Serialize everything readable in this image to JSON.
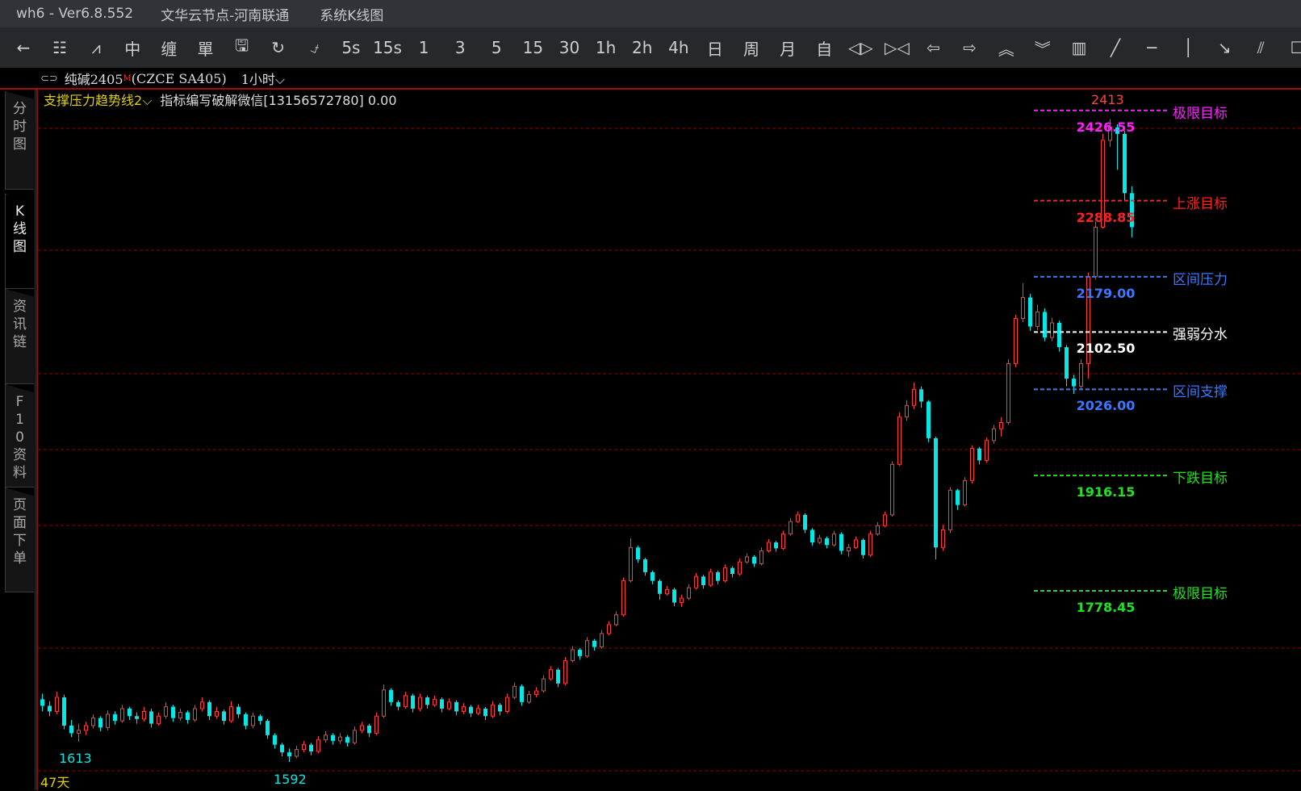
{
  "window": {
    "app": "wh6  -  Ver6.8.552",
    "server": "文华云节点-河南联通",
    "view": "系统K线图"
  },
  "toolbar": [
    {
      "icon": "back-arrow-icon",
      "glyph": "←"
    },
    {
      "icon": "list-icon",
      "glyph": "☷"
    },
    {
      "icon": "line-chart-icon",
      "glyph": "⩘"
    },
    {
      "icon": "candlestick-icon",
      "glyph": "中"
    },
    {
      "icon": "chan-icon",
      "glyph": "缠"
    },
    {
      "icon": "order-icon",
      "glyph": "單"
    },
    {
      "icon": "save-icon",
      "glyph": "🖫"
    },
    {
      "icon": "refresh-icon",
      "glyph": "↻"
    },
    {
      "icon": "switch-icon",
      "glyph": "⍻"
    },
    {
      "label": "5s"
    },
    {
      "label": "15s"
    },
    {
      "label": "1"
    },
    {
      "label": "3"
    },
    {
      "label": "5"
    },
    {
      "label": "15"
    },
    {
      "label": "30"
    },
    {
      "label": "1h"
    },
    {
      "label": "2h"
    },
    {
      "label": "4h"
    },
    {
      "label": "日"
    },
    {
      "label": "周"
    },
    {
      "label": "月"
    },
    {
      "label": "自"
    },
    {
      "icon": "expand-icon",
      "glyph": "◁▷"
    },
    {
      "icon": "shrink-icon",
      "glyph": "▷◁"
    },
    {
      "icon": "left-icon",
      "glyph": "⇦"
    },
    {
      "icon": "right-icon",
      "glyph": "⇨"
    },
    {
      "icon": "up-double-icon",
      "glyph": "︽"
    },
    {
      "icon": "down-double-icon",
      "glyph": "︾"
    },
    {
      "icon": "layout-icon",
      "glyph": "▥"
    },
    {
      "icon": "trendline-icon",
      "glyph": "╱"
    },
    {
      "icon": "hline-icon",
      "glyph": "─"
    },
    {
      "icon": "vline-icon",
      "glyph": "│"
    },
    {
      "icon": "arrow-line-icon",
      "glyph": "↘"
    },
    {
      "icon": "parallel-line-icon",
      "glyph": "⫽"
    },
    {
      "icon": "rect-icon",
      "glyph": "☐"
    }
  ],
  "instrument": {
    "link_icon": "link-icon",
    "link_glyph": "⊂⊃",
    "name": "纯碱2405",
    "mark": "M",
    "code": "(CZCE SA405)",
    "period": "1小时",
    "chevron": "⌵"
  },
  "indicator": {
    "name": "支撑压力趋势线2",
    "chevron": "⌵",
    "text": "指标编写破解微信[13156572780] 0.00"
  },
  "sidebar": [
    {
      "label": "分时图",
      "active": false
    },
    {
      "label": "K线图",
      "active": true
    },
    {
      "label": "资讯链",
      "active": false
    },
    {
      "label": "F10资料",
      "active": false
    },
    {
      "label": "页面下单",
      "active": false
    }
  ],
  "colors": {
    "up": "#ff3b3b",
    "down": "#00e8e8",
    "doji": "#ffffff",
    "grid": "#8b0000"
  },
  "chart_data": {
    "type": "candlestick",
    "scale": "log",
    "levels": [
      {
        "name": "极限目标",
        "value": "2426.55",
        "price": 2426.55,
        "color": "#ff20ff"
      },
      {
        "name": "上涨目标",
        "value": "2288.85",
        "price": 2288.85,
        "color": "#ff2020"
      },
      {
        "name": "区间压力",
        "value": "2179.00",
        "price": 2179.0,
        "color": "#3a78ff"
      },
      {
        "name": "强弱分水",
        "value": "2102.50",
        "price": 2102.5,
        "color": "#ffffff"
      },
      {
        "name": "区间支撑",
        "value": "2026.00",
        "price": 2026.0,
        "color": "#3a78ff"
      },
      {
        "name": "下跌目标",
        "value": "1916.15",
        "price": 1916.15,
        "color": "#20e020"
      },
      {
        "name": "极限目标",
        "value": "1778.45",
        "price": 1778.45,
        "color": "#20e020"
      }
    ],
    "annotations": {
      "high": "2413",
      "low1": "1613",
      "low2": "1592",
      "days": "47天"
    },
    "ohlc": [
      [
        1658,
        1664,
        1645,
        1651
      ],
      [
        1651,
        1656,
        1640,
        1645
      ],
      [
        1645,
        1666,
        1642,
        1660
      ],
      [
        1660,
        1663,
        1626,
        1630
      ],
      [
        1630,
        1636,
        1618,
        1622
      ],
      [
        1622,
        1632,
        1613,
        1625
      ],
      [
        1625,
        1634,
        1620,
        1630
      ],
      [
        1630,
        1642,
        1627,
        1638
      ],
      [
        1638,
        1640,
        1624,
        1628
      ],
      [
        1628,
        1646,
        1625,
        1642
      ],
      [
        1642,
        1645,
        1631,
        1635
      ],
      [
        1635,
        1652,
        1633,
        1648
      ],
      [
        1648,
        1650,
        1636,
        1640
      ],
      [
        1640,
        1644,
        1632,
        1637
      ],
      [
        1637,
        1650,
        1634,
        1645
      ],
      [
        1645,
        1648,
        1628,
        1632
      ],
      [
        1632,
        1644,
        1630,
        1640
      ],
      [
        1640,
        1655,
        1637,
        1650
      ],
      [
        1650,
        1652,
        1634,
        1638
      ],
      [
        1638,
        1648,
        1635,
        1644
      ],
      [
        1644,
        1646,
        1632,
        1636
      ],
      [
        1636,
        1652,
        1634,
        1648
      ],
      [
        1648,
        1660,
        1645,
        1655
      ],
      [
        1655,
        1657,
        1636,
        1640
      ],
      [
        1640,
        1650,
        1637,
        1645
      ],
      [
        1645,
        1647,
        1631,
        1635
      ],
      [
        1635,
        1656,
        1633,
        1650
      ],
      [
        1650,
        1653,
        1638,
        1642
      ],
      [
        1642,
        1644,
        1626,
        1630
      ],
      [
        1630,
        1644,
        1627,
        1640
      ],
      [
        1640,
        1642,
        1631,
        1635
      ],
      [
        1635,
        1637,
        1616,
        1620
      ],
      [
        1620,
        1622,
        1606,
        1610
      ],
      [
        1610,
        1612,
        1598,
        1602
      ],
      [
        1602,
        1606,
        1592,
        1598
      ],
      [
        1598,
        1609,
        1596,
        1605
      ],
      [
        1605,
        1614,
        1602,
        1610
      ],
      [
        1610,
        1612,
        1599,
        1603
      ],
      [
        1603,
        1619,
        1601,
        1615
      ],
      [
        1615,
        1624,
        1612,
        1620
      ],
      [
        1620,
        1622,
        1610,
        1614
      ],
      [
        1614,
        1622,
        1611,
        1618
      ],
      [
        1618,
        1620,
        1608,
        1612
      ],
      [
        1612,
        1629,
        1610,
        1625
      ],
      [
        1625,
        1634,
        1622,
        1630
      ],
      [
        1630,
        1632,
        1618,
        1622
      ],
      [
        1622,
        1644,
        1620,
        1640
      ],
      [
        1640,
        1674,
        1638,
        1668
      ],
      [
        1668,
        1670,
        1651,
        1655
      ],
      [
        1655,
        1657,
        1646,
        1650
      ],
      [
        1650,
        1666,
        1648,
        1662
      ],
      [
        1662,
        1664,
        1644,
        1648
      ],
      [
        1648,
        1664,
        1645,
        1660
      ],
      [
        1660,
        1662,
        1648,
        1652
      ],
      [
        1652,
        1662,
        1650,
        1658
      ],
      [
        1658,
        1660,
        1644,
        1648
      ],
      [
        1648,
        1659,
        1646,
        1655
      ],
      [
        1655,
        1657,
        1641,
        1645
      ],
      [
        1645,
        1654,
        1642,
        1650
      ],
      [
        1650,
        1652,
        1639,
        1643
      ],
      [
        1643,
        1652,
        1641,
        1648
      ],
      [
        1648,
        1650,
        1636,
        1640
      ],
      [
        1640,
        1656,
        1638,
        1652
      ],
      [
        1652,
        1654,
        1641,
        1645
      ],
      [
        1645,
        1664,
        1643,
        1660
      ],
      [
        1660,
        1676,
        1658,
        1672
      ],
      [
        1672,
        1674,
        1651,
        1655
      ],
      [
        1655,
        1667,
        1653,
        1663
      ],
      [
        1663,
        1671,
        1660,
        1667
      ],
      [
        1667,
        1684,
        1665,
        1680
      ],
      [
        1680,
        1694,
        1678,
        1690
      ],
      [
        1690,
        1692,
        1671,
        1675
      ],
      [
        1675,
        1704,
        1673,
        1700
      ],
      [
        1700,
        1716,
        1698,
        1712
      ],
      [
        1712,
        1714,
        1701,
        1705
      ],
      [
        1705,
        1726,
        1703,
        1722
      ],
      [
        1722,
        1724,
        1711,
        1715
      ],
      [
        1715,
        1734,
        1713,
        1730
      ],
      [
        1730,
        1744,
        1728,
        1740
      ],
      [
        1740,
        1755,
        1738,
        1751
      ],
      [
        1751,
        1794,
        1749,
        1790
      ],
      [
        1790,
        1840,
        1788,
        1829
      ],
      [
        1829,
        1831,
        1811,
        1815
      ],
      [
        1815,
        1817,
        1796,
        1800
      ],
      [
        1800,
        1802,
        1786,
        1790
      ],
      [
        1790,
        1792,
        1768,
        1775
      ],
      [
        1775,
        1784,
        1773,
        1780
      ],
      [
        1780,
        1782,
        1761,
        1765
      ],
      [
        1765,
        1774,
        1760,
        1770
      ],
      [
        1770,
        1786,
        1768,
        1782
      ],
      [
        1782,
        1799,
        1780,
        1795
      ],
      [
        1795,
        1797,
        1781,
        1785
      ],
      [
        1785,
        1804,
        1783,
        1800
      ],
      [
        1800,
        1802,
        1786,
        1790
      ],
      [
        1790,
        1809,
        1788,
        1805
      ],
      [
        1805,
        1807,
        1794,
        1798
      ],
      [
        1798,
        1816,
        1796,
        1812
      ],
      [
        1812,
        1822,
        1810,
        1818
      ],
      [
        1818,
        1820,
        1806,
        1810
      ],
      [
        1810,
        1829,
        1808,
        1825
      ],
      [
        1825,
        1839,
        1823,
        1835
      ],
      [
        1835,
        1837,
        1824,
        1828
      ],
      [
        1828,
        1849,
        1826,
        1845
      ],
      [
        1845,
        1864,
        1843,
        1860
      ],
      [
        1860,
        1872,
        1858,
        1868
      ],
      [
        1868,
        1870,
        1846,
        1850
      ],
      [
        1850,
        1852,
        1831,
        1835
      ],
      [
        1835,
        1844,
        1833,
        1840
      ],
      [
        1840,
        1842,
        1828,
        1832
      ],
      [
        1832,
        1849,
        1830,
        1845
      ],
      [
        1845,
        1847,
        1821,
        1825
      ],
      [
        1825,
        1833,
        1818,
        1829
      ],
      [
        1829,
        1842,
        1827,
        1838
      ],
      [
        1838,
        1840,
        1816,
        1820
      ],
      [
        1820,
        1849,
        1818,
        1845
      ],
      [
        1845,
        1859,
        1843,
        1855
      ],
      [
        1855,
        1872,
        1853,
        1868
      ],
      [
        1868,
        1934,
        1866,
        1930
      ],
      [
        1930,
        1996,
        1928,
        1990
      ],
      [
        1990,
        2012,
        1985,
        2005
      ],
      [
        2005,
        2035,
        2000,
        2026
      ],
      [
        2026,
        2030,
        2002,
        2010
      ],
      [
        2010,
        2012,
        1958,
        1963
      ],
      [
        1963,
        1965,
        1815,
        1829
      ],
      [
        1829,
        1856,
        1825,
        1850
      ],
      [
        1850,
        1902,
        1846,
        1898
      ],
      [
        1898,
        1900,
        1874,
        1880
      ],
      [
        1880,
        1914,
        1878,
        1910
      ],
      [
        1910,
        1954,
        1906,
        1950
      ],
      [
        1950,
        1952,
        1930,
        1935
      ],
      [
        1935,
        1964,
        1932,
        1960
      ],
      [
        1960,
        1980,
        1956,
        1975
      ],
      [
        1975,
        1990,
        1965,
        1983
      ],
      [
        1983,
        2066,
        1980,
        2060
      ],
      [
        2060,
        2126,
        2055,
        2121
      ],
      [
        2121,
        2170,
        2116,
        2150
      ],
      [
        2150,
        2155,
        2104,
        2110
      ],
      [
        2110,
        2140,
        2105,
        2130
      ],
      [
        2130,
        2135,
        2090,
        2095
      ],
      [
        2095,
        2122,
        2090,
        2115
      ],
      [
        2115,
        2118,
        2076,
        2082
      ],
      [
        2082,
        2085,
        2030,
        2040
      ],
      [
        2040,
        2045,
        2020,
        2030
      ],
      [
        2030,
        2066,
        2026,
        2060
      ],
      [
        2060,
        2185,
        2040,
        2179
      ],
      [
        2179,
        2258,
        2175,
        2250
      ],
      [
        2250,
        2390,
        2248,
        2380
      ],
      [
        2380,
        2413,
        2370,
        2400
      ],
      [
        2400,
        2405,
        2335,
        2390
      ],
      [
        2390,
        2395,
        2290,
        2300
      ],
      [
        2300,
        2310,
        2235,
        2250
      ]
    ]
  }
}
